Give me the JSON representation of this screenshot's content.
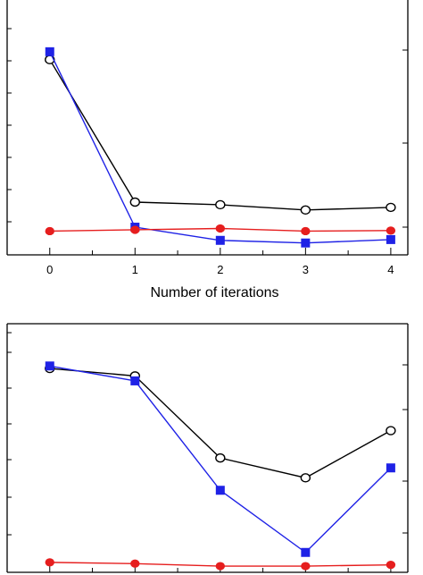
{
  "chart_data": [
    {
      "type": "line",
      "x": [
        0,
        1,
        2,
        3,
        4
      ],
      "xlabel": "Number of iterations",
      "xlim": [
        -0.5,
        4.2
      ],
      "ylim": [
        0,
        10
      ],
      "grid": false,
      "series": [
        {
          "marker": "open-circle",
          "color": "#000000",
          "values": [
            7.4,
            2.0,
            1.9,
            1.7,
            1.8
          ]
        },
        {
          "marker": "filled-square",
          "color": "#1f22e6",
          "values": [
            7.7,
            1.05,
            0.55,
            0.45,
            0.58
          ]
        },
        {
          "marker": "filled-circle",
          "color": "#e61e1e",
          "values": [
            0.9,
            0.95,
            1.0,
            0.9,
            0.92
          ]
        }
      ]
    },
    {
      "type": "line",
      "x": [
        0,
        1,
        2,
        3,
        4
      ],
      "xlim": [
        -0.5,
        4.2
      ],
      "ylim": [
        0,
        10
      ],
      "grid": false,
      "series": [
        {
          "marker": "open-circle",
          "color": "#000000",
          "values": [
            8.2,
            7.9,
            4.6,
            3.8,
            5.7
          ]
        },
        {
          "marker": "filled-square",
          "color": "#1f22e6",
          "values": [
            8.3,
            7.7,
            3.3,
            0.8,
            4.2
          ]
        },
        {
          "marker": "filled-circle",
          "color": "#e61e1e",
          "values": [
            0.4,
            0.35,
            0.25,
            0.25,
            0.3
          ]
        }
      ]
    }
  ]
}
